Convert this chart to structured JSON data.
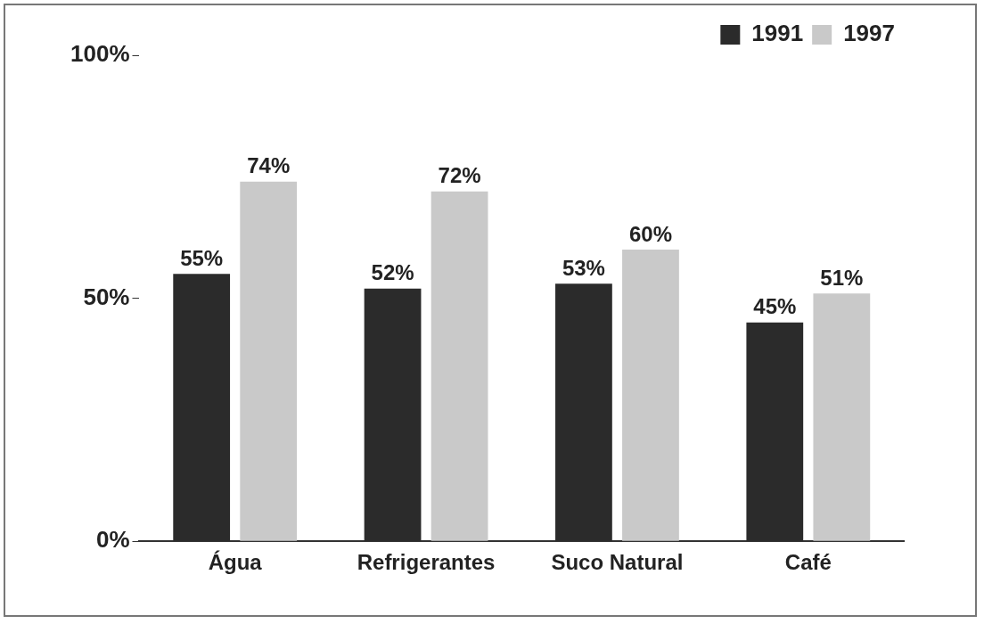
{
  "chart_data": {
    "type": "bar",
    "categories": [
      "Água",
      "Refrigerantes",
      "Suco Natural",
      "Café"
    ],
    "series": [
      {
        "name": "1991",
        "color": "#2b2b2b",
        "values": [
          55,
          52,
          53,
          45
        ],
        "value_labels": [
          "55%",
          "52%",
          "53%",
          "45%"
        ]
      },
      {
        "name": "1997",
        "color": "#c9c9c9",
        "values": [
          74,
          72,
          60,
          51
        ],
        "value_labels": [
          "74%",
          "72%",
          "60%",
          "51%"
        ]
      }
    ],
    "ylim": [
      0,
      100
    ],
    "yticks": [
      {
        "value": 0,
        "label": "0%"
      },
      {
        "value": 50,
        "label": "50%"
      },
      {
        "value": 100,
        "label": "100%"
      }
    ],
    "grid": false,
    "legend": "top right"
  }
}
